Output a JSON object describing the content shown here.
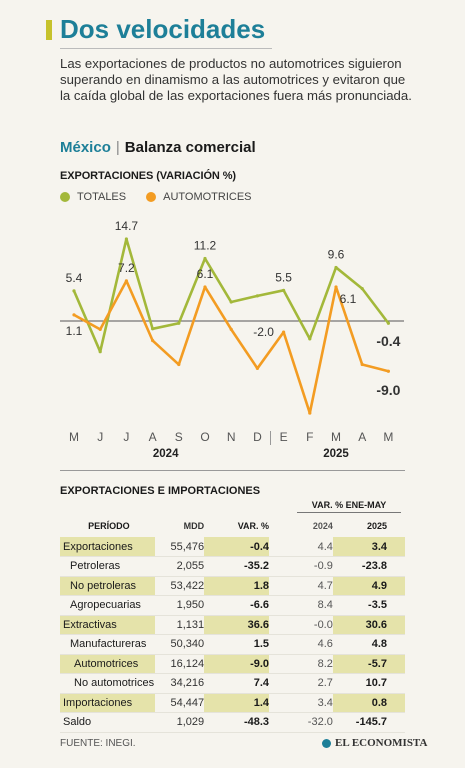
{
  "header": {
    "title": "Dos velocidades",
    "subtitle": "Las exportaciones de productos no automotrices siguieron superando en dinamismo a las automotrices y evitaron que la caída global de las exportaciones fuera más pronunciada.",
    "country": "México",
    "separator": "|",
    "section": "Balanza comercial"
  },
  "colors": {
    "totales": "#a3b83a",
    "automotrices": "#f39c22",
    "accent": "#1d7f98",
    "highlight": "#e5e3aa"
  },
  "chart_data": {
    "type": "line",
    "title": "EXPORTACIONES (VARIACIÓN %)",
    "categories": [
      "M",
      "J",
      "J",
      "A",
      "S",
      "O",
      "N",
      "D",
      "E",
      "F",
      "M",
      "A",
      "M"
    ],
    "years": [
      {
        "label": "2024",
        "from": 0,
        "to": 7
      },
      {
        "label": "2025",
        "from": 8,
        "to": 12
      }
    ],
    "series": [
      {
        "name": "TOTALES",
        "values": [
          5.4,
          -5.5,
          14.7,
          -1.4,
          -0.4,
          11.2,
          3.4,
          4.5,
          5.5,
          -3.2,
          9.6,
          5.8,
          -0.4
        ],
        "labels": [
          "5.4",
          "",
          "14.7",
          "",
          "",
          "11.2",
          "",
          "",
          "5.5",
          "",
          "9.6",
          "",
          "-0.4"
        ]
      },
      {
        "name": "AUTOMOTRICES",
        "values": [
          1.1,
          -1.5,
          7.2,
          -3.5,
          -7.8,
          6.1,
          -1.5,
          -8.5,
          -2.0,
          -16.5,
          6.1,
          -7.8,
          -9.0
        ],
        "labels": [
          "1.1",
          "",
          "7.2",
          "",
          "",
          "6.1",
          "",
          "",
          "-2.0",
          "",
          "6.1",
          "",
          "-9.0"
        ]
      }
    ],
    "ylim": [
      -17,
      16
    ]
  },
  "table": {
    "title": "EXPORTACIONES E IMPORTACIONES",
    "var_header": "VAR. % ENE-MAY",
    "columns": [
      "PERÍODO",
      "MDD",
      "VAR. %",
      "2024",
      "2025"
    ],
    "rows": [
      {
        "name": "Exportaciones",
        "mdd": "55,476",
        "var": "-0.4",
        "y2024": "4.4",
        "y2025": "3.4",
        "hl": true,
        "indent": 0
      },
      {
        "name": "Petroleras",
        "mdd": "2,055",
        "var": "-35.2",
        "y2024": "-0.9",
        "y2025": "-23.8",
        "hl": false,
        "indent": 1
      },
      {
        "name": "No petroleras",
        "mdd": "53,422",
        "var": "1.8",
        "y2024": "4.7",
        "y2025": "4.9",
        "hl": true,
        "indent": 1
      },
      {
        "name": "Agropecuarias",
        "mdd": "1,950",
        "var": "-6.6",
        "y2024": "8.4",
        "y2025": "-3.5",
        "hl": false,
        "indent": 1
      },
      {
        "name": "Extractivas",
        "mdd": "1,131",
        "var": "36.6",
        "y2024": "-0.0",
        "y2025": "30.6",
        "hl": true,
        "indent": 0
      },
      {
        "name": "Manufactureras",
        "mdd": "50,340",
        "var": "1.5",
        "y2024": "4.6",
        "y2025": "4.8",
        "hl": false,
        "indent": 1
      },
      {
        "name": "Automotrices",
        "mdd": "16,124",
        "var": "-9.0",
        "y2024": "8.2",
        "y2025": "-5.7",
        "hl": true,
        "indent": 2
      },
      {
        "name": "No automotrices",
        "mdd": "34,216",
        "var": "7.4",
        "y2024": "2.7",
        "y2025": "10.7",
        "hl": false,
        "indent": 2
      },
      {
        "name": "Importaciones",
        "mdd": "54,447",
        "var": "1.4",
        "y2024": "3.4",
        "y2025": "0.8",
        "hl": true,
        "indent": 0
      },
      {
        "name": "Saldo",
        "mdd": "1,029",
        "var": "-48.3",
        "y2024": "-32.0",
        "y2025": "-145.7",
        "hl": false,
        "indent": 0
      }
    ]
  },
  "footer": {
    "source": "FUENTE: INEGI.",
    "brand": "EL ECONOMISTA"
  }
}
